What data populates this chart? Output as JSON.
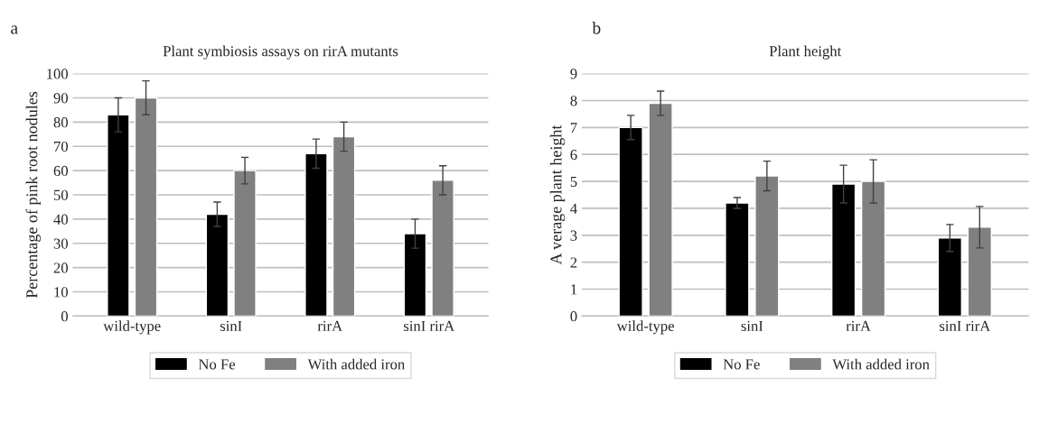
{
  "chart_data": [
    {
      "type": "bar",
      "title": "Plant symbiosis assays on rirA mutants",
      "ylabel": "Percentage of pink root nodules",
      "annotations": [
        "a"
      ],
      "categories": [
        "wild-type",
        "sinI",
        "rirA",
        "sinI rirA"
      ],
      "series": [
        {
          "name": "No Fe",
          "color": "#000000",
          "values": [
            83,
            42,
            67,
            34
          ],
          "errors": [
            7,
            5,
            6,
            6
          ]
        },
        {
          "name": "With added iron",
          "color": "#808080",
          "values": [
            90,
            60,
            74,
            56
          ],
          "errors": [
            7,
            5.5,
            6,
            6
          ]
        }
      ],
      "ylim": [
        0,
        100
      ],
      "yticks": [
        0,
        10,
        20,
        30,
        40,
        50,
        60,
        70,
        80,
        90,
        100
      ],
      "grid": "y",
      "legend": "bottom"
    },
    {
      "type": "bar",
      "title": "Plant height",
      "ylabel": "A verage plant height",
      "annotations": [
        "b"
      ],
      "categories": [
        "wild-type",
        "sinI",
        "rirA",
        "sinI rirA"
      ],
      "series": [
        {
          "name": "No Fe",
          "color": "#000000",
          "values": [
            7.0,
            4.2,
            4.9,
            2.9
          ],
          "errors": [
            0.45,
            0.2,
            0.7,
            0.5
          ]
        },
        {
          "name": "With added iron",
          "color": "#808080",
          "values": [
            7.9,
            5.2,
            5.0,
            3.3
          ],
          "errors": [
            0.45,
            0.55,
            0.8,
            0.77
          ]
        }
      ],
      "ylim": [
        0,
        9
      ],
      "yticks": [
        0,
        1,
        2,
        3,
        4,
        5,
        6,
        7,
        8,
        9
      ],
      "grid": "y",
      "legend": "bottom"
    }
  ]
}
